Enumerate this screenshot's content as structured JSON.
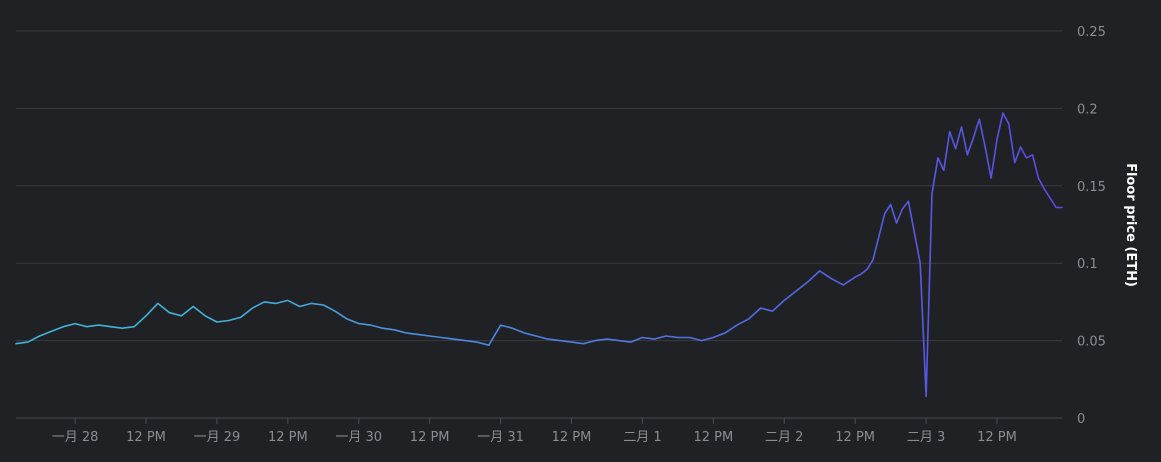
{
  "chart_data": {
    "type": "line",
    "title": "",
    "xlabel": "",
    "ylabel": "Floor price (ETH)",
    "ylim": [
      0,
      0.25
    ],
    "y_ticks": [
      0,
      0.05,
      0.1,
      0.15,
      0.2,
      0.25
    ],
    "y_tick_labels": [
      "0",
      "0.05",
      "0.1",
      "0.15",
      "0.2",
      "0.25"
    ],
    "y_axis_side": "right",
    "grid": true,
    "legend": "none",
    "x_range": [
      "01-27 14:00",
      "02-03 23:00"
    ],
    "x_ticks": [
      {
        "t": "01-28 00:00",
        "label": "一月 28"
      },
      {
        "t": "01-28 12:00",
        "label": "12 PM"
      },
      {
        "t": "01-29 00:00",
        "label": "一月 29"
      },
      {
        "t": "01-29 12:00",
        "label": "12 PM"
      },
      {
        "t": "01-30 00:00",
        "label": "一月 30"
      },
      {
        "t": "01-30 12:00",
        "label": "12 PM"
      },
      {
        "t": "01-31 00:00",
        "label": "一月 31"
      },
      {
        "t": "01-31 12:00",
        "label": "12 PM"
      },
      {
        "t": "02-01 00:00",
        "label": "二月 1"
      },
      {
        "t": "02-01 12:00",
        "label": "12 PM"
      },
      {
        "t": "02-02 00:00",
        "label": "二月 2"
      },
      {
        "t": "02-02 12:00",
        "label": "12 PM"
      },
      {
        "t": "02-03 00:00",
        "label": "二月 3"
      },
      {
        "t": "02-03 12:00",
        "label": "12 PM"
      }
    ],
    "gradient_colors": [
      "#41b3d9",
      "#4a8fe0",
      "#5b4ae3"
    ],
    "series": [
      {
        "name": "",
        "x": [
          "01-27 14:00",
          "01-27 16:00",
          "01-27 18:00",
          "01-27 20:00",
          "01-27 22:00",
          "01-28 00:00",
          "01-28 02:00",
          "01-28 04:00",
          "01-28 06:00",
          "01-28 08:00",
          "01-28 10:00",
          "01-28 12:00",
          "01-28 14:00",
          "01-28 16:00",
          "01-28 18:00",
          "01-28 20:00",
          "01-28 22:00",
          "01-29 00:00",
          "01-29 02:00",
          "01-29 04:00",
          "01-29 06:00",
          "01-29 08:00",
          "01-29 10:00",
          "01-29 12:00",
          "01-29 14:00",
          "01-29 16:00",
          "01-29 18:00",
          "01-29 20:00",
          "01-29 22:00",
          "01-30 00:00",
          "01-30 02:00",
          "01-30 04:00",
          "01-30 06:00",
          "01-30 08:00",
          "01-30 10:00",
          "01-30 12:00",
          "01-30 14:00",
          "01-30 16:00",
          "01-30 18:00",
          "01-30 20:00",
          "01-30 22:00",
          "01-31 00:00",
          "01-31 02:00",
          "01-31 04:00",
          "01-31 06:00",
          "01-31 08:00",
          "01-31 10:00",
          "01-31 12:00",
          "01-31 14:00",
          "01-31 16:00",
          "01-31 18:00",
          "01-31 20:00",
          "01-31 22:00",
          "02-01 00:00",
          "02-01 02:00",
          "02-01 04:00",
          "02-01 06:00",
          "02-01 08:00",
          "02-01 10:00",
          "02-01 12:00",
          "02-01 14:00",
          "02-01 16:00",
          "02-01 18:00",
          "02-01 20:00",
          "02-01 22:00",
          "02-02 00:00",
          "02-02 02:00",
          "02-02 04:00",
          "02-02 06:00",
          "02-02 08:00",
          "02-02 10:00",
          "02-02 12:00",
          "02-02 13:00",
          "02-02 14:00",
          "02-02 15:00",
          "02-02 16:00",
          "02-02 17:00",
          "02-02 18:00",
          "02-02 19:00",
          "02-02 20:00",
          "02-02 21:00",
          "02-02 22:00",
          "02-02 23:00",
          "02-03 00:00",
          "02-03 01:00",
          "02-03 02:00",
          "02-03 03:00",
          "02-03 04:00",
          "02-03 05:00",
          "02-03 06:00",
          "02-03 07:00",
          "02-03 08:00",
          "02-03 09:00",
          "02-03 10:00",
          "02-03 11:00",
          "02-03 12:00",
          "02-03 13:00",
          "02-03 14:00",
          "02-03 15:00",
          "02-03 16:00",
          "02-03 17:00",
          "02-03 18:00",
          "02-03 19:00",
          "02-03 20:00",
          "02-03 21:00",
          "02-03 22:00",
          "02-03 23:00"
        ],
        "values": [
          0.048,
          0.049,
          0.053,
          0.056,
          0.059,
          0.061,
          0.059,
          0.06,
          0.059,
          0.058,
          0.059,
          0.066,
          0.074,
          0.068,
          0.066,
          0.072,
          0.066,
          0.062,
          0.063,
          0.065,
          0.071,
          0.075,
          0.074,
          0.076,
          0.072,
          0.074,
          0.073,
          0.069,
          0.064,
          0.061,
          0.06,
          0.058,
          0.057,
          0.055,
          0.054,
          0.053,
          0.052,
          0.051,
          0.05,
          0.049,
          0.047,
          0.06,
          0.058,
          0.055,
          0.053,
          0.051,
          0.05,
          0.049,
          0.048,
          0.05,
          0.051,
          0.05,
          0.049,
          0.052,
          0.051,
          0.053,
          0.052,
          0.052,
          0.05,
          0.052,
          0.055,
          0.06,
          0.064,
          0.071,
          0.069,
          0.076,
          0.082,
          0.088,
          0.095,
          0.09,
          0.086,
          0.091,
          0.093,
          0.096,
          0.102,
          0.117,
          0.132,
          0.138,
          0.126,
          0.135,
          0.14,
          0.12,
          0.1,
          0.014,
          0.145,
          0.168,
          0.16,
          0.185,
          0.174,
          0.188,
          0.17,
          0.181,
          0.193,
          0.175,
          0.155,
          0.18,
          0.197,
          0.19,
          0.165,
          0.175,
          0.168,
          0.17,
          0.155,
          0.148,
          0.142,
          0.136,
          0.136
        ]
      }
    ]
  }
}
